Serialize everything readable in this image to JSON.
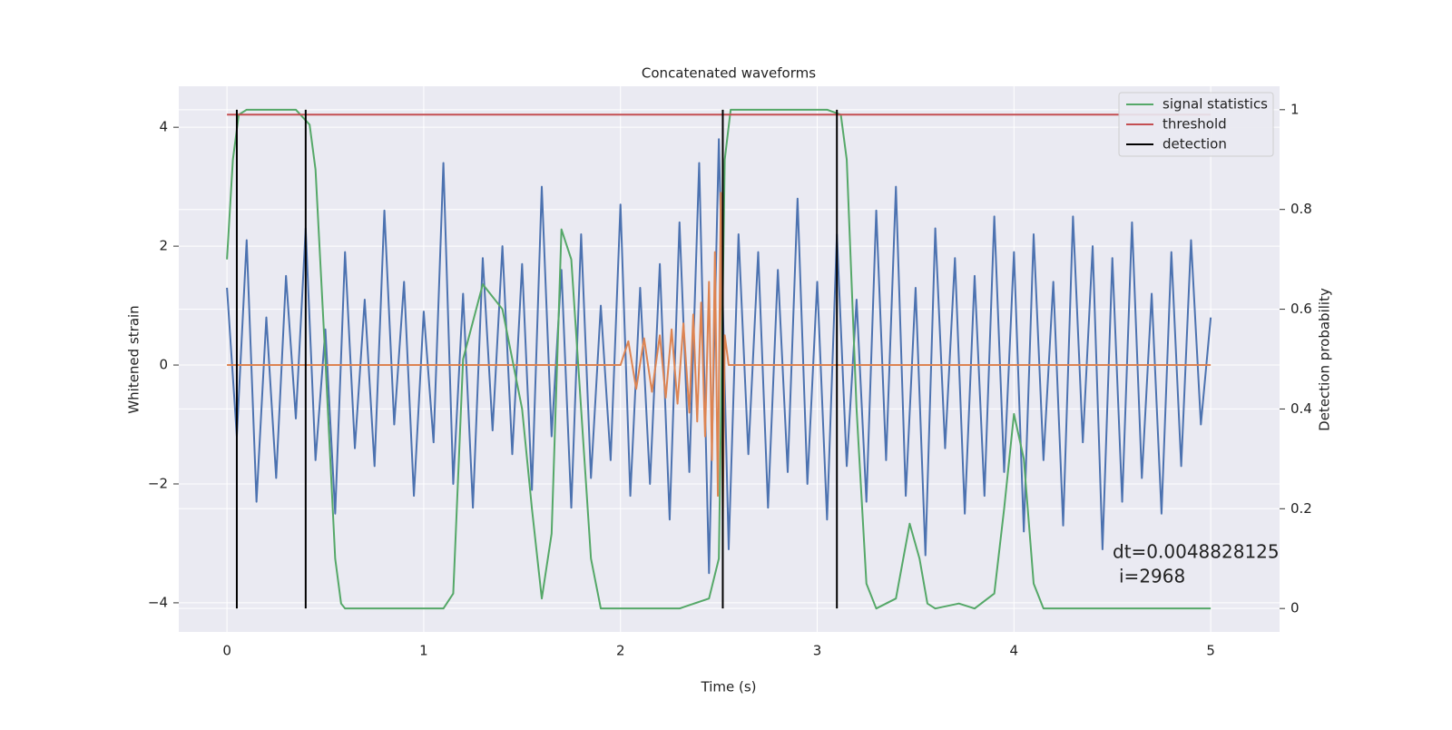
{
  "chart_data": {
    "type": "line",
    "title": "Concatenated waveforms",
    "x_label": "Time (s)",
    "y_label": "Whitened strain",
    "y2_label": "Detection probability",
    "xlim": [
      -0.245,
      5.35
    ],
    "ylim": [
      -4.49,
      4.69
    ],
    "y2lim": [
      -0.047,
      1.047
    ],
    "xticks": [
      0,
      1,
      2,
      3,
      4,
      5
    ],
    "yticks": [
      {
        "value": -4,
        "label": "−4"
      },
      {
        "value": -2,
        "label": "−2"
      },
      0,
      2,
      4
    ],
    "y2ticks": [
      0.0,
      0.2,
      0.4,
      0.6,
      0.8,
      1.0
    ],
    "grid": true,
    "legend": "upper right",
    "annotation": [
      "dt=0.0048828125",
      "i=2968"
    ],
    "series": [
      {
        "color": "#4c72b0",
        "x": [
          0,
          0.05,
          0.1,
          0.15,
          0.2,
          0.25,
          0.3,
          0.35,
          0.4,
          0.45,
          0.5,
          0.55,
          0.6,
          0.65,
          0.7,
          0.75,
          0.8,
          0.85,
          0.9,
          0.95,
          1.0,
          1.05,
          1.1,
          1.15,
          1.2,
          1.25,
          1.3,
          1.35,
          1.4,
          1.45,
          1.5,
          1.55,
          1.6,
          1.65,
          1.7,
          1.75,
          1.8,
          1.85,
          1.9,
          1.95,
          2.0,
          2.05,
          2.1,
          2.15,
          2.2,
          2.25,
          2.3,
          2.35,
          2.4,
          2.45,
          2.5,
          2.55,
          2.6,
          2.65,
          2.7,
          2.75,
          2.8,
          2.85,
          2.9,
          2.95,
          3.0,
          3.05,
          3.1,
          3.15,
          3.2,
          3.25,
          3.3,
          3.35,
          3.4,
          3.45,
          3.5,
          3.55,
          3.6,
          3.65,
          3.7,
          3.75,
          3.8,
          3.85,
          3.9,
          3.95,
          4.0,
          4.05,
          4.1,
          4.15,
          4.2,
          4.25,
          4.3,
          4.35,
          4.4,
          4.45,
          4.5,
          4.55,
          4.6,
          4.65,
          4.7,
          4.75,
          4.8,
          4.85,
          4.9,
          4.95,
          5.0
        ],
        "values": [
          1.3,
          -1.2,
          2.1,
          -2.3,
          0.8,
          -1.9,
          1.5,
          -0.9,
          2.3,
          -1.6,
          0.6,
          -2.5,
          1.9,
          -1.4,
          1.1,
          -1.7,
          2.6,
          -1.0,
          1.4,
          -2.2,
          0.9,
          -1.3,
          3.4,
          -2.0,
          1.2,
          -2.4,
          1.8,
          -1.1,
          2.0,
          -1.5,
          1.7,
          -2.1,
          3.0,
          -1.2,
          1.6,
          -2.4,
          2.2,
          -1.9,
          1.0,
          -1.6,
          2.7,
          -2.2,
          1.3,
          -2.0,
          1.7,
          -2.6,
          2.4,
          -1.8,
          3.4,
          -3.5,
          3.8,
          -3.1,
          2.2,
          -1.5,
          1.9,
          -2.4,
          1.6,
          -1.8,
          2.8,
          -2.0,
          1.4,
          -2.6,
          2.2,
          -1.7,
          1.1,
          -2.3,
          2.6,
          -1.6,
          3.0,
          -2.2,
          1.3,
          -3.2,
          2.3,
          -1.4,
          1.8,
          -2.5,
          1.5,
          -2.2,
          2.5,
          -1.8,
          1.9,
          -2.8,
          2.2,
          -1.6,
          1.4,
          -2.7,
          2.5,
          -1.3,
          2.0,
          -3.1,
          1.8,
          -2.3,
          2.4,
          -1.9,
          1.2,
          -2.5,
          1.9,
          -1.7,
          2.1,
          -1.0,
          0.8
        ]
      },
      {
        "color": "#dd8452",
        "x": [
          0,
          2.0,
          2.04,
          2.08,
          2.12,
          2.16,
          2.2,
          2.23,
          2.26,
          2.29,
          2.32,
          2.35,
          2.37,
          2.39,
          2.41,
          2.43,
          2.45,
          2.465,
          2.48,
          2.495,
          2.51,
          2.52,
          2.53,
          2.55,
          2.6,
          5.0
        ],
        "values": [
          0,
          0,
          0.4,
          -0.4,
          0.45,
          -0.45,
          0.5,
          -0.55,
          0.6,
          -0.65,
          0.7,
          -0.8,
          0.85,
          -0.95,
          1.05,
          -1.2,
          1.4,
          -1.6,
          1.9,
          -2.2,
          2.9,
          -2.6,
          0.5,
          0,
          0,
          0
        ]
      },
      {
        "name": "signal statistics",
        "color": "#55a868",
        "axis": "y2",
        "x": [
          0,
          0.03,
          0.06,
          0.1,
          0.35,
          0.42,
          0.45,
          0.5,
          0.55,
          0.58,
          0.6,
          1.1,
          1.15,
          1.2,
          1.3,
          1.4,
          1.5,
          1.55,
          1.6,
          1.65,
          1.7,
          1.75,
          1.8,
          1.85,
          1.9,
          2.3,
          2.45,
          2.5,
          2.53,
          2.56,
          3.05,
          3.12,
          3.15,
          3.2,
          3.25,
          3.3,
          3.4,
          3.47,
          3.52,
          3.56,
          3.6,
          3.72,
          3.8,
          3.9,
          3.95,
          4.0,
          4.05,
          4.1,
          4.15,
          5.0
        ],
        "values": [
          0.7,
          0.9,
          0.99,
          1.0,
          1.0,
          0.97,
          0.88,
          0.5,
          0.1,
          0.01,
          0.0,
          0.0,
          0.03,
          0.5,
          0.65,
          0.6,
          0.4,
          0.2,
          0.02,
          0.15,
          0.76,
          0.7,
          0.4,
          0.1,
          0.0,
          0.0,
          0.02,
          0.1,
          0.9,
          1.0,
          1.0,
          0.99,
          0.9,
          0.4,
          0.05,
          0.0,
          0.02,
          0.17,
          0.1,
          0.01,
          0.0,
          0.01,
          0.0,
          0.03,
          0.2,
          0.39,
          0.3,
          0.05,
          0.0,
          0.0
        ]
      },
      {
        "name": "threshold",
        "color": "#c44e52",
        "axis": "y2",
        "x": [
          0,
          5
        ],
        "values": [
          0.99,
          0.99
        ]
      },
      {
        "name": "detection",
        "color": "#000000",
        "axis": "y2",
        "type": "vline",
        "x": [
          0.05,
          0.4,
          2.52,
          3.1
        ],
        "values": [
          1,
          1,
          1,
          1
        ]
      }
    ]
  }
}
